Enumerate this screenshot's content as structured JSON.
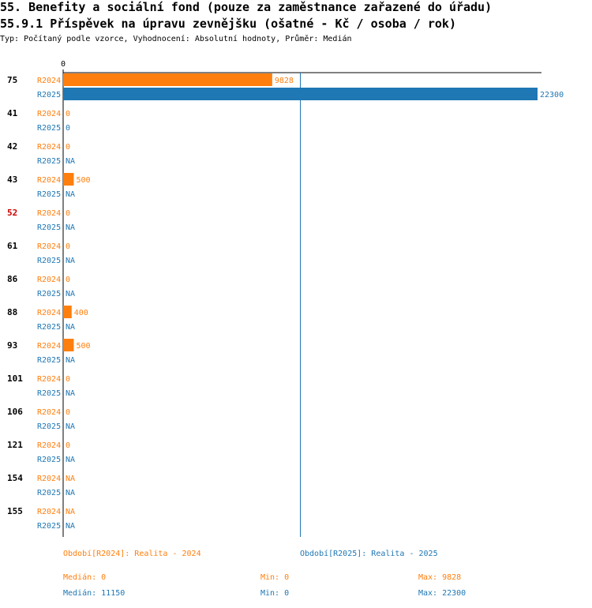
{
  "title": "55. Benefity a sociální fond (pouze za zaměstnance zařazené do úřadu)",
  "subtitle": "55.9.1 Příspěvek na úpravu zevnějšku (ošatné - Kč / osoba / rok)",
  "type_line": "Typ: Počítaný podle vzorce, Vyhodnocení: Absolutní hodnoty, Průměr: Medián",
  "colors": {
    "r2024": "#ff7f0e",
    "r2025": "#1f77b4",
    "highlight": "#cc0000"
  },
  "chart_data": {
    "type": "bar",
    "orientation": "horizontal",
    "x_tick_labels": [
      "0"
    ],
    "xlim": [
      0,
      22300
    ],
    "reference_line": 11150,
    "series_names": [
      "R2024",
      "R2025"
    ],
    "categories": [
      {
        "label": "75",
        "highlight": false,
        "r2024": 9828,
        "r2025": 22300,
        "r2024_label": "9828",
        "r2025_label": "22300"
      },
      {
        "label": "41",
        "highlight": false,
        "r2024": 0,
        "r2025": 0,
        "r2024_label": "0",
        "r2025_label": "0"
      },
      {
        "label": "42",
        "highlight": false,
        "r2024": 0,
        "r2025": null,
        "r2024_label": "0",
        "r2025_label": "NA"
      },
      {
        "label": "43",
        "highlight": false,
        "r2024": 500,
        "r2025": null,
        "r2024_label": "500",
        "r2025_label": "NA"
      },
      {
        "label": "52",
        "highlight": true,
        "r2024": 0,
        "r2025": null,
        "r2024_label": "0",
        "r2025_label": "NA"
      },
      {
        "label": "61",
        "highlight": false,
        "r2024": 0,
        "r2025": null,
        "r2024_label": "0",
        "r2025_label": "NA"
      },
      {
        "label": "86",
        "highlight": false,
        "r2024": 0,
        "r2025": null,
        "r2024_label": "0",
        "r2025_label": "NA"
      },
      {
        "label": "88",
        "highlight": false,
        "r2024": 400,
        "r2025": null,
        "r2024_label": "400",
        "r2025_label": "NA"
      },
      {
        "label": "93",
        "highlight": false,
        "r2024": 500,
        "r2025": null,
        "r2024_label": "500",
        "r2025_label": "NA"
      },
      {
        "label": "101",
        "highlight": false,
        "r2024": 0,
        "r2025": null,
        "r2024_label": "0",
        "r2025_label": "NA"
      },
      {
        "label": "106",
        "highlight": false,
        "r2024": 0,
        "r2025": null,
        "r2024_label": "0",
        "r2025_label": "NA"
      },
      {
        "label": "121",
        "highlight": false,
        "r2024": 0,
        "r2025": null,
        "r2024_label": "0",
        "r2025_label": "NA"
      },
      {
        "label": "154",
        "highlight": false,
        "r2024": null,
        "r2025": null,
        "r2024_label": "NA",
        "r2025_label": "NA"
      },
      {
        "label": "155",
        "highlight": false,
        "r2024": null,
        "r2025": null,
        "r2024_label": "NA",
        "r2025_label": "NA"
      }
    ]
  },
  "legend": {
    "r2024": {
      "period": "Období[R2024]: Realita - 2024",
      "median": "Medián: 0",
      "min": "Min: 0",
      "max": "Max: 9828"
    },
    "r2025": {
      "period": "Období[R2025]: Realita - 2025",
      "median": "Medián: 11150",
      "min": "Min: 0",
      "max": "Max: 22300"
    }
  }
}
